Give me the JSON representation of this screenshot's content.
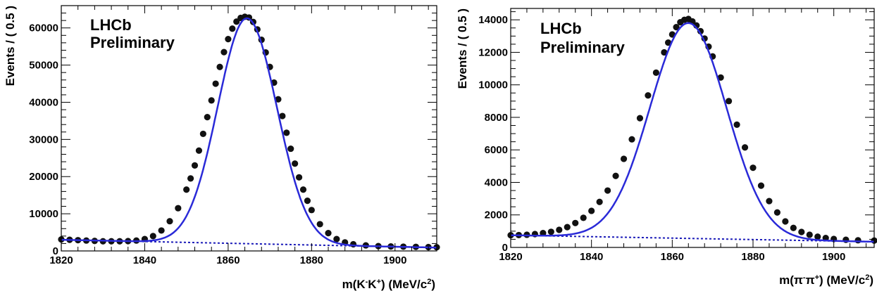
{
  "chart_data": [
    {
      "type": "scatter",
      "experiment_label": "LHCb",
      "status_label": "Preliminary",
      "xlabel_parts": [
        "m(K",
        "-",
        "K",
        "+",
        ") (MeV/c",
        "2",
        ")"
      ],
      "ylabel": "Events / ( 0.5 )",
      "xlim": [
        1820,
        1910
      ],
      "ylim": [
        0,
        66000
      ],
      "xticks": [
        1820,
        1840,
        1860,
        1880,
        1900
      ],
      "yticks": [
        0,
        10000,
        20000,
        30000,
        40000,
        50000,
        60000
      ],
      "fit": {
        "peak_x": 1864.5,
        "peak_y": 62600,
        "sigma_left": 7.0,
        "sigma_right": 7.2
      },
      "background": {
        "x": [
          1820,
          1910
        ],
        "y": [
          3000,
          900
        ]
      },
      "series": [
        {
          "style": "data-points",
          "x": [
            1820,
            1822,
            1824,
            1826,
            1828,
            1830,
            1832,
            1834,
            1836,
            1838,
            1840,
            1842,
            1844,
            1846,
            1848,
            1850,
            1851,
            1852,
            1853,
            1854,
            1855,
            1856,
            1857,
            1858,
            1859,
            1860,
            1861,
            1862,
            1863,
            1864,
            1865,
            1866,
            1867,
            1868,
            1869,
            1870,
            1871,
            1872,
            1873,
            1874,
            1875,
            1876,
            1877,
            1878,
            1879,
            1880,
            1882,
            1884,
            1886,
            1888,
            1890,
            1893,
            1896,
            1899,
            1902,
            1905,
            1908,
            1910
          ],
          "y": [
            3100,
            3000,
            2900,
            2800,
            2700,
            2600,
            2600,
            2600,
            2650,
            2800,
            3200,
            4000,
            5500,
            8000,
            11500,
            16500,
            19500,
            23000,
            27000,
            31500,
            36000,
            40500,
            45000,
            49500,
            53500,
            57000,
            59800,
            61700,
            62700,
            63000,
            62800,
            61600,
            59600,
            56800,
            53400,
            49500,
            45300,
            40800,
            36300,
            31800,
            27500,
            23500,
            19800,
            16500,
            13500,
            11000,
            7200,
            4800,
            3200,
            2300,
            1800,
            1500,
            1300,
            1200,
            1150,
            1100,
            1050,
            1000
          ]
        }
      ]
    },
    {
      "type": "scatter",
      "experiment_label": "LHCb",
      "status_label": "Preliminary",
      "xlabel_parts": [
        "m(π",
        "-",
        "π",
        "+",
        ") (MeV/c",
        "2",
        ")"
      ],
      "ylabel": "Events / ( 0.5 )",
      "xlim": [
        1820,
        1910
      ],
      "ylim": [
        0,
        14700
      ],
      "xticks": [
        1820,
        1840,
        1860,
        1880,
        1900
      ],
      "yticks": [
        0,
        2000,
        4000,
        6000,
        8000,
        10000,
        12000,
        14000
      ],
      "fit": {
        "peak_x": 1864,
        "peak_y": 13800,
        "sigma_left": 9.5,
        "sigma_right": 9.5
      },
      "background": {
        "x": [
          1820,
          1910
        ],
        "y": [
          750,
          350
        ]
      },
      "series": [
        {
          "style": "data-points",
          "x": [
            1820,
            1822,
            1824,
            1826,
            1828,
            1830,
            1832,
            1834,
            1836,
            1838,
            1840,
            1842,
            1844,
            1846,
            1848,
            1850,
            1852,
            1854,
            1856,
            1858,
            1859,
            1860,
            1861,
            1862,
            1863,
            1864,
            1865,
            1866,
            1867,
            1868,
            1869,
            1870,
            1872,
            1874,
            1876,
            1878,
            1880,
            1882,
            1884,
            1886,
            1888,
            1890,
            1892,
            1894,
            1896,
            1898,
            1900,
            1903,
            1906,
            1910
          ],
          "y": [
            750,
            760,
            780,
            820,
            880,
            960,
            1080,
            1250,
            1500,
            1820,
            2250,
            2800,
            3500,
            4400,
            5450,
            6650,
            7950,
            9350,
            10750,
            12000,
            12600,
            13100,
            13550,
            13850,
            14000,
            14050,
            13900,
            13650,
            13300,
            12850,
            12350,
            11750,
            10450,
            9000,
            7550,
            6150,
            4900,
            3800,
            2850,
            2150,
            1600,
            1200,
            950,
            780,
            660,
            580,
            520,
            470,
            440,
            420
          ]
        }
      ]
    }
  ]
}
